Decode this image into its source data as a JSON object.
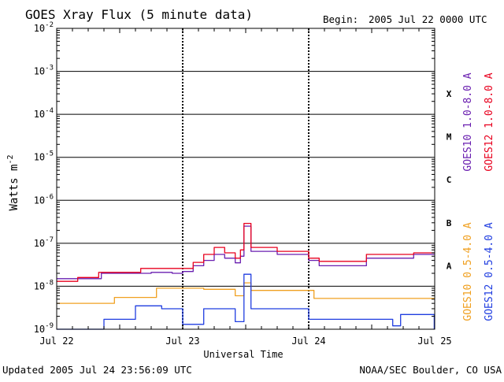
{
  "chart_data": {
    "type": "line",
    "title": "GOES Xray Flux (5 minute data)",
    "begin_label": "Begin:",
    "begin_value": "2005 Jul 22 0000 UTC",
    "xlabel": "Universal Time",
    "ylabel_base": "Watts m",
    "ylabel_sup": "-2",
    "y_scale": "log",
    "ylim": [
      1e-09,
      0.01
    ],
    "xlim": [
      "2005-07-22 00:00",
      "2005-07-25 00:00"
    ],
    "x_ticks": [
      "Jul 22",
      "Jul 23",
      "Jul 24",
      "Jul 25"
    ],
    "y_ticks": [
      {
        "value": 1e-09,
        "base": "10",
        "exp": "-9"
      },
      {
        "value": 1e-08,
        "base": "10",
        "exp": "-8"
      },
      {
        "value": 1e-07,
        "base": "10",
        "exp": "-7"
      },
      {
        "value": 1e-06,
        "base": "10",
        "exp": "-6"
      },
      {
        "value": 1e-05,
        "base": "10",
        "exp": "-5"
      },
      {
        "value": 0.0001,
        "base": "10",
        "exp": "-4"
      },
      {
        "value": 0.001,
        "base": "10",
        "exp": "-3"
      },
      {
        "value": 0.01,
        "base": "10",
        "exp": "-2"
      }
    ],
    "flare_classes": [
      {
        "label": "A",
        "value": 3e-08
      },
      {
        "label": "B",
        "value": 3e-07
      },
      {
        "label": "C",
        "value": 3e-06
      },
      {
        "label": "M",
        "value": 3e-05
      },
      {
        "label": "X",
        "value": 0.0003
      }
    ],
    "grid": true,
    "series": [
      {
        "name": "GOES10 1.0-8.0 A",
        "color": "#6a1fb0",
        "points": [
          [
            "2005-07-22 00:00",
            1.5e-08
          ],
          [
            "2005-07-22 08:00",
            1.5e-08
          ],
          [
            "2005-07-22 08:30",
            2e-08
          ],
          [
            "2005-07-22 18:00",
            2.1e-08
          ],
          [
            "2005-07-22 22:00",
            2e-08
          ],
          [
            "2005-07-23 00:00",
            2.2e-08
          ],
          [
            "2005-07-23 02:00",
            3e-08
          ],
          [
            "2005-07-23 04:00",
            4e-08
          ],
          [
            "2005-07-23 06:00",
            5.5e-08
          ],
          [
            "2005-07-23 08:00",
            4.5e-08
          ],
          [
            "2005-07-23 10:00",
            3.5e-08
          ],
          [
            "2005-07-23 11:00",
            5e-08
          ],
          [
            "2005-07-23 11:40",
            2.5e-07
          ],
          [
            "2005-07-23 13:00",
            6.5e-08
          ],
          [
            "2005-07-23 18:00",
            5.5e-08
          ],
          [
            "2005-07-24 00:00",
            4e-08
          ],
          [
            "2005-07-24 02:00",
            3e-08
          ],
          [
            "2005-07-24 08:00",
            3e-08
          ],
          [
            "2005-07-24 11:00",
            4.5e-08
          ],
          [
            "2005-07-24 16:00",
            4.5e-08
          ],
          [
            "2005-07-24 20:00",
            5.5e-08
          ],
          [
            "2005-07-24 23:55",
            5.5e-08
          ]
        ]
      },
      {
        "name": "GOES12 1.0-8.0 A",
        "color": "#e8001e",
        "points": [
          [
            "2005-07-22 00:00",
            1.3e-08
          ],
          [
            "2005-07-22 04:00",
            1.6e-08
          ],
          [
            "2005-07-22 08:00",
            2.1e-08
          ],
          [
            "2005-07-22 16:00",
            2.6e-08
          ],
          [
            "2005-07-22 22:00",
            2.6e-08
          ],
          [
            "2005-07-23 00:00",
            2.6e-08
          ],
          [
            "2005-07-23 02:00",
            3.6e-08
          ],
          [
            "2005-07-23 04:00",
            5.5e-08
          ],
          [
            "2005-07-23 06:00",
            8e-08
          ],
          [
            "2005-07-23 08:00",
            6e-08
          ],
          [
            "2005-07-23 10:00",
            4.5e-08
          ],
          [
            "2005-07-23 11:00",
            7e-08
          ],
          [
            "2005-07-23 11:40",
            2.9e-07
          ],
          [
            "2005-07-23 13:00",
            8e-08
          ],
          [
            "2005-07-23 18:00",
            6.5e-08
          ],
          [
            "2005-07-24 00:00",
            4.5e-08
          ],
          [
            "2005-07-24 02:00",
            3.8e-08
          ],
          [
            "2005-07-24 09:00",
            3.8e-08
          ],
          [
            "2005-07-24 11:00",
            5.5e-08
          ],
          [
            "2005-07-24 18:00",
            5.5e-08
          ],
          [
            "2005-07-24 20:00",
            6e-08
          ],
          [
            "2005-07-24 23:55",
            6e-08
          ]
        ]
      },
      {
        "name": "GOES10 0.5-4.0 A",
        "color": "#f0a020",
        "points": [
          [
            "2005-07-22 00:00",
            4e-09
          ],
          [
            "2005-07-22 08:00",
            4e-09
          ],
          [
            "2005-07-22 11:00",
            5.5e-09
          ],
          [
            "2005-07-22 15:00",
            5.5e-09
          ],
          [
            "2005-07-22 19:00",
            9e-09
          ],
          [
            "2005-07-23 00:00",
            9e-09
          ],
          [
            "2005-07-23 04:00",
            8.5e-09
          ],
          [
            "2005-07-23 10:00",
            6e-09
          ],
          [
            "2005-07-23 11:40",
            1.2e-08
          ],
          [
            "2005-07-23 13:00",
            8e-09
          ],
          [
            "2005-07-24 00:00",
            8e-09
          ],
          [
            "2005-07-24 01:00",
            5.2e-09
          ],
          [
            "2005-07-24 23:55",
            5.2e-09
          ]
        ]
      },
      {
        "name": "GOES12 0.5-4.0 A",
        "color": "#1f3de0",
        "points": [
          [
            "2005-07-22 00:00",
            1e-09
          ],
          [
            "2005-07-22 08:00",
            1e-09
          ],
          [
            "2005-07-22 09:00",
            1.7e-09
          ],
          [
            "2005-07-22 15:00",
            3.5e-09
          ],
          [
            "2005-07-22 20:00",
            3e-09
          ],
          [
            "2005-07-23 00:00",
            1.3e-09
          ],
          [
            "2005-07-23 04:00",
            3e-09
          ],
          [
            "2005-07-23 10:00",
            1.5e-09
          ],
          [
            "2005-07-23 11:40",
            1.9e-08
          ],
          [
            "2005-07-23 13:00",
            3e-09
          ],
          [
            "2005-07-24 00:00",
            1.7e-09
          ],
          [
            "2005-07-24 16:00",
            1.2e-09
          ],
          [
            "2005-07-24 17:30",
            2.2e-09
          ],
          [
            "2005-07-24 23:55",
            1e-09
          ]
        ]
      }
    ]
  },
  "footer": {
    "updated": "Updated 2005 Jul 24 23:56:09 UTC",
    "credit": "NOAA/SEC Boulder, CO USA"
  }
}
